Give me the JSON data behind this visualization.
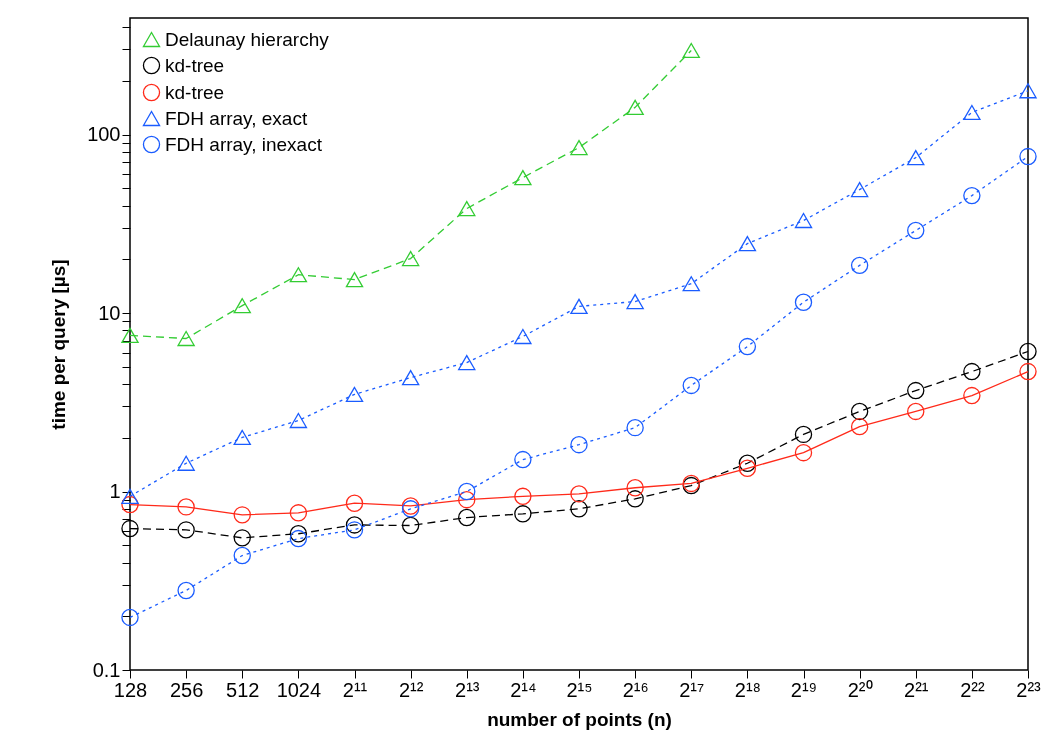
{
  "chart_data": {
    "type": "line",
    "xlabel": "number of points (n)",
    "ylabel": "time per query [µs]",
    "categories": [
      "128",
      "256",
      "512",
      "1024",
      "2¹¹",
      "2¹²",
      "2¹³",
      "2¹⁴",
      "2¹⁵",
      "2¹⁶",
      "2¹⁷",
      "2¹⁸",
      "2¹⁹",
      "2²⁰",
      "2²¹",
      "2²²",
      "2²³"
    ],
    "log": "y",
    "ylim": [
      0.1,
      450
    ],
    "yticks": [
      0.1,
      {
        "value": 0.2,
        "label": null
      },
      {
        "value": 0.3,
        "label": null
      },
      {
        "value": 0.4,
        "label": null
      },
      {
        "value": 0.5,
        "label": null
      },
      {
        "value": 0.6,
        "label": null
      },
      {
        "value": 0.7,
        "label": null
      },
      {
        "value": 0.8,
        "label": null
      },
      {
        "value": 0.9,
        "label": null
      },
      1,
      {
        "value": 2,
        "label": null
      },
      {
        "value": 3,
        "label": null
      },
      {
        "value": 4,
        "label": null
      },
      {
        "value": 5,
        "label": null
      },
      {
        "value": 6,
        "label": null
      },
      {
        "value": 7,
        "label": null
      },
      {
        "value": 8,
        "label": null
      },
      {
        "value": 9,
        "label": null
      },
      10,
      {
        "value": 20,
        "label": null
      },
      {
        "value": 30,
        "label": null
      },
      {
        "value": 40,
        "label": null
      },
      {
        "value": 50,
        "label": null
      },
      {
        "value": 60,
        "label": null
      },
      {
        "value": 70,
        "label": null
      },
      {
        "value": 80,
        "label": null
      },
      {
        "value": 90,
        "label": null
      },
      100,
      {
        "value": 200,
        "label": null
      },
      {
        "value": 300,
        "label": null
      },
      {
        "value": 400,
        "label": null
      }
    ],
    "grid": false,
    "legend": "top left",
    "series": [
      {
        "name": "Delaunay hierarchy",
        "color": "#33cc33",
        "marker": "triangle",
        "line_style": "dashed",
        "values": [
          7.5,
          7.2,
          11.0,
          16.4,
          15.4,
          20.2,
          38.5,
          57.4,
          84.6,
          142,
          296,
          null,
          null,
          null,
          null,
          null,
          null
        ]
      },
      {
        "name": "kd-tree",
        "color": "#000000",
        "marker": "circle",
        "line_style": "dashed",
        "values": [
          0.62,
          0.61,
          0.55,
          0.58,
          0.65,
          0.645,
          0.715,
          0.75,
          0.8,
          0.91,
          1.08,
          1.44,
          2.09,
          2.81,
          3.68,
          4.7,
          6.09
        ]
      },
      {
        "name": "kd-tree",
        "color": "#ff2a1a",
        "marker": "circle",
        "line_style": "solid",
        "values": [
          0.845,
          0.82,
          0.74,
          0.76,
          0.86,
          0.83,
          0.9,
          0.94,
          0.97,
          1.05,
          1.11,
          1.35,
          1.65,
          2.31,
          2.81,
          3.45,
          4.7
        ]
      },
      {
        "name": "FDH array, exact",
        "color": "#1a5cff",
        "marker": "triangle",
        "line_style": "dotted",
        "values": [
          0.94,
          1.44,
          2.01,
          2.5,
          3.5,
          4.35,
          5.28,
          7.39,
          10.9,
          11.6,
          14.6,
          24.5,
          33.0,
          49.2,
          74.3,
          133,
          176
        ]
      },
      {
        "name": "FDH array, inexact",
        "color": "#1a5cff",
        "marker": "circle",
        "line_style": "dotted",
        "values": [
          0.197,
          0.279,
          0.438,
          0.545,
          0.61,
          0.8,
          1.0,
          1.51,
          1.83,
          2.28,
          3.93,
          6.49,
          11.5,
          18.5,
          29.0,
          45.5,
          75.3
        ]
      }
    ]
  }
}
